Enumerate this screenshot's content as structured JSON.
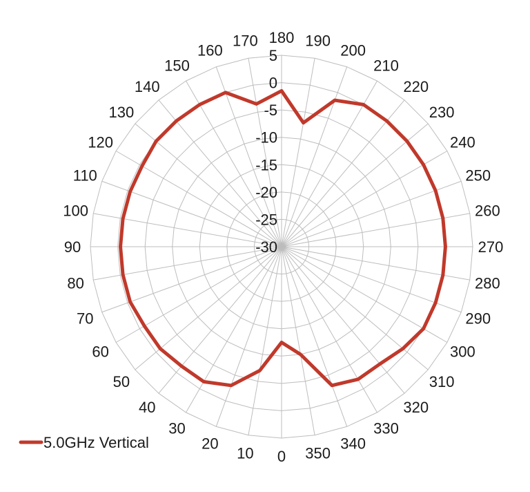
{
  "chart_data": {
    "type": "line",
    "subtype": "polar-radar",
    "title": "",
    "angle_labels": [
      "0",
      "10",
      "20",
      "30",
      "40",
      "50",
      "60",
      "70",
      "80",
      "90",
      "100",
      "110",
      "120",
      "130",
      "140",
      "150",
      "160",
      "170",
      "180",
      "190",
      "200",
      "210",
      "220",
      "230",
      "240",
      "250",
      "260",
      "270",
      "280",
      "290",
      "300",
      "310",
      "320",
      "330",
      "340",
      "350"
    ],
    "radial_ticks": [
      "5",
      "0",
      "-5",
      "-10",
      "-15",
      "-20",
      "-25",
      "-30"
    ],
    "radial_range": [
      -30,
      5
    ],
    "angle_direction": "clockwise",
    "angle_zero_position": "bottom",
    "grid": true,
    "legend_position": "bottom-left",
    "series": [
      {
        "name": "5.0GHz Vertical",
        "color": "#c0392b",
        "angles": [
          0,
          10,
          20,
          30,
          40,
          50,
          60,
          70,
          80,
          90,
          100,
          110,
          120,
          130,
          140,
          150,
          160,
          170,
          180,
          190,
          200,
          210,
          220,
          230,
          240,
          250,
          260,
          270,
          280,
          290,
          300,
          310,
          320,
          330,
          340,
          350
        ],
        "values": [
          -12.5,
          -7,
          -3,
          -1.5,
          -1.5,
          -1,
          -1,
          -0.5,
          -0.5,
          -0.5,
          -0.5,
          -0.5,
          -0.5,
          0,
          0,
          0,
          0,
          -3.5,
          -1.5,
          -7,
          -1.5,
          0,
          0,
          0,
          0,
          0,
          0,
          0,
          0,
          0,
          0,
          -1,
          -2,
          -2,
          -3,
          -10
        ]
      }
    ]
  }
}
